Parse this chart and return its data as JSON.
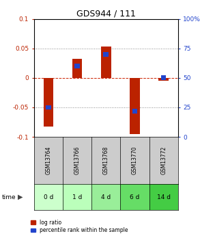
{
  "title": "GDS944 / 111",
  "samples": [
    "GSM13764",
    "GSM13766",
    "GSM13768",
    "GSM13770",
    "GSM13772"
  ],
  "time_labels": [
    "0 d",
    "1 d",
    "4 d",
    "6 d",
    "14 d"
  ],
  "log_ratios": [
    -0.082,
    0.032,
    0.053,
    -0.095,
    -0.005
  ],
  "percentile_ranks": [
    25,
    60,
    70,
    22,
    50
  ],
  "ylim": [
    -0.1,
    0.1
  ],
  "right_ylim": [
    0,
    100
  ],
  "yticks_left": [
    -0.1,
    -0.05,
    0,
    0.05,
    0.1
  ],
  "yticks_right": [
    0,
    25,
    50,
    75,
    100
  ],
  "bar_color_red": "#bb2200",
  "bar_color_blue": "#2244cc",
  "zero_line_color": "#cc2200",
  "sample_bg": "#cccccc",
  "time_bg_colors": [
    "#ccffcc",
    "#aaffaa",
    "#88ee88",
    "#66dd66",
    "#44cc44"
  ],
  "bar_width": 0.35,
  "blue_bar_width": 0.18,
  "blue_bar_height": 0.008
}
